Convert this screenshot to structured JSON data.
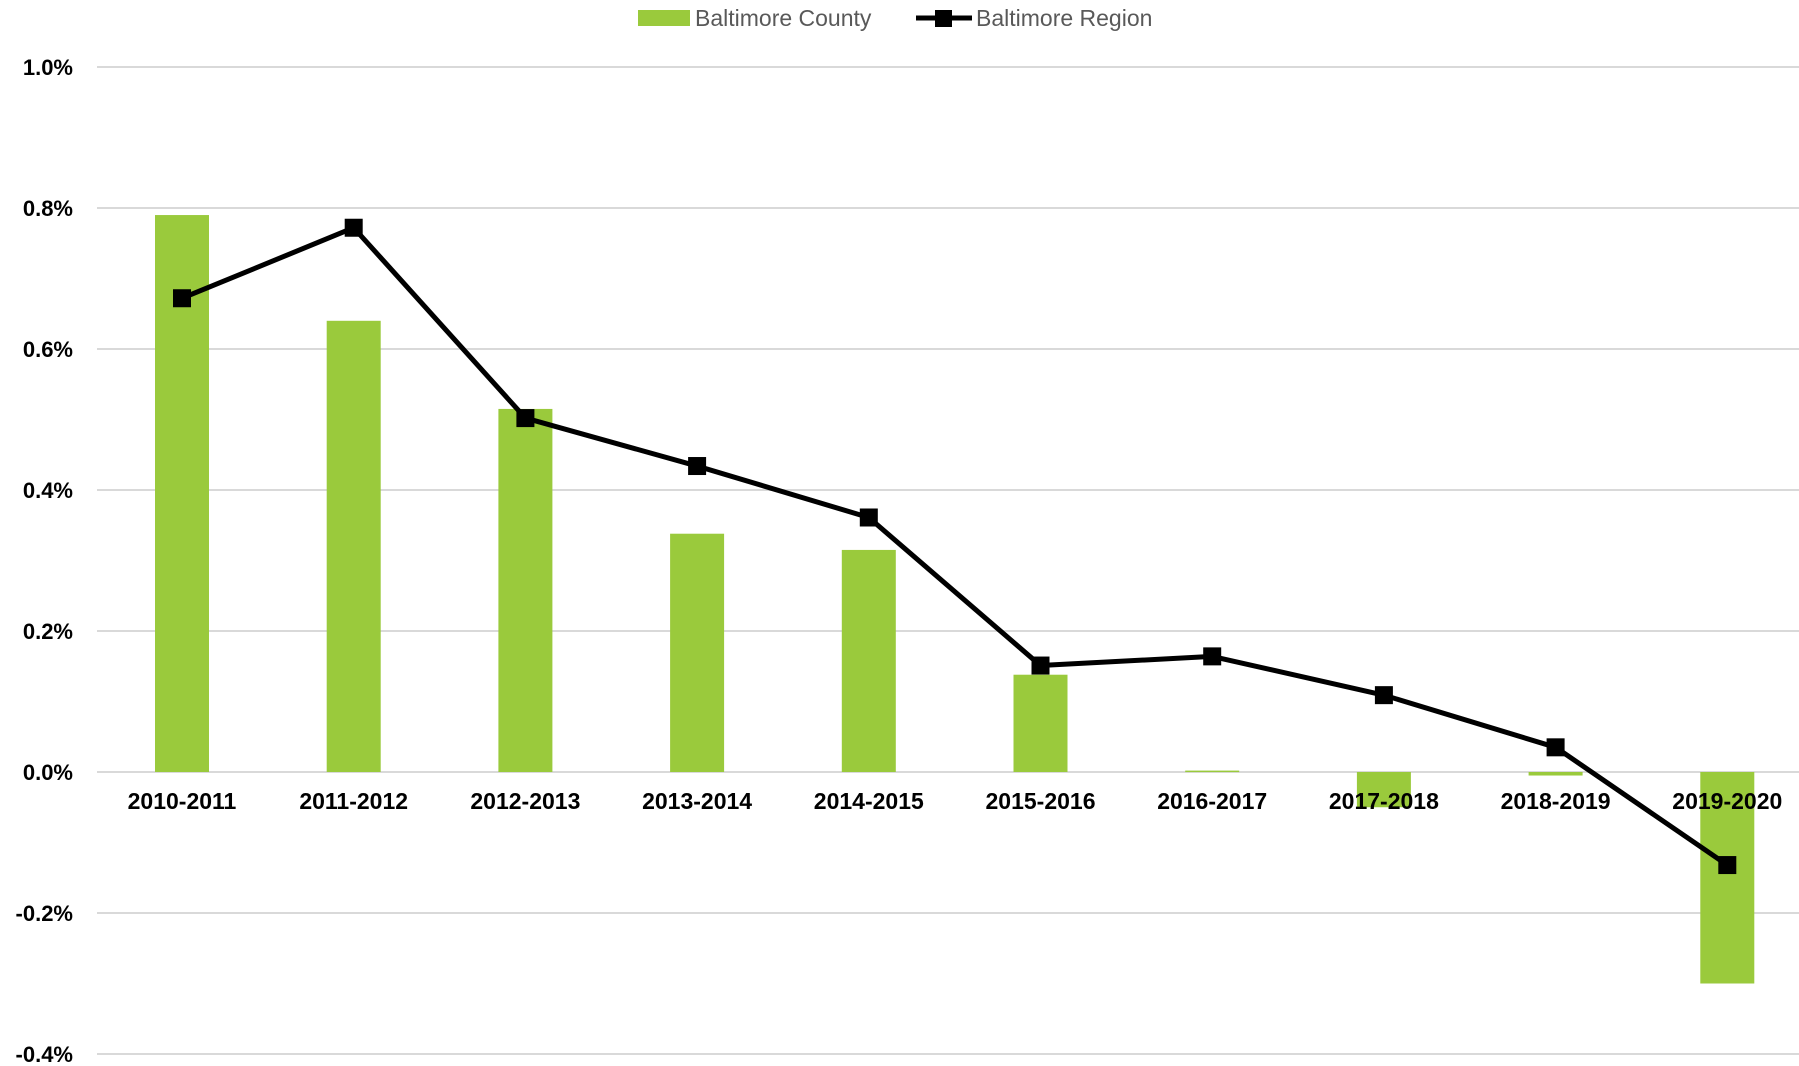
{
  "chart_data": {
    "type": "bar",
    "categories": [
      "2010-2011",
      "2011-2012",
      "2012-2013",
      "2013-2014",
      "2014-2015",
      "2015-2016",
      "2016-2017",
      "2017-2018",
      "2018-2019",
      "2019-2020"
    ],
    "series": [
      {
        "name": "Baltimore County",
        "type": "bar",
        "values": [
          0.79,
          0.64,
          0.515,
          0.338,
          0.315,
          0.138,
          0.002,
          -0.05,
          -0.005,
          -0.3
        ]
      },
      {
        "name": "Baltimore Region",
        "type": "line",
        "values": [
          0.672,
          0.772,
          0.502,
          0.434,
          0.361,
          0.151,
          0.164,
          0.109,
          0.035,
          -0.132
        ]
      }
    ],
    "yticks": [
      "1.0%",
      "0.8%",
      "0.6%",
      "0.4%",
      "0.2%",
      "0.0%",
      "-0.2%",
      "-0.4%"
    ],
    "ylim": [
      -0.4,
      1.0
    ],
    "title": "",
    "xlabel": "",
    "ylabel": "",
    "grid": true,
    "legend_position": "top-center",
    "colors": {
      "bar": "#9aca3c",
      "line": "#000000",
      "grid": "#d9d9d9",
      "legend_text": "#595959"
    }
  }
}
